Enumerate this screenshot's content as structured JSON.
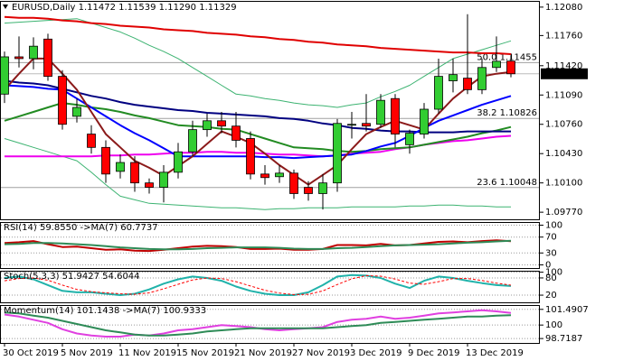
{
  "chart_data": [
    {
      "type": "candlestick",
      "title": "EURUSD,Daily  1.11472 1.11539 1.11290 1.11329",
      "categories": [
        "30 Oct 2019",
        null,
        null,
        null,
        "5 Nov 2019",
        null,
        null,
        null,
        "11 Nov 2019",
        null,
        null,
        null,
        "15 Nov 2019",
        null,
        null,
        null,
        "21 Nov 2019",
        null,
        null,
        null,
        "27 Nov 2019",
        null,
        null,
        null,
        "3 Dec 2019",
        null,
        null,
        null,
        "9 Dec 2019",
        null,
        null,
        null,
        "13 Dec 2019",
        null,
        null,
        null
      ],
      "open": [
        1.111,
        1.1152,
        1.115,
        1.1172,
        1.113,
        1.1085,
        1.1065,
        1.105,
        1.1023,
        1.1033,
        1.101,
        1.1005,
        1.1022,
        1.1045,
        1.107,
        1.108,
        1.1074,
        1.106,
        1.102,
        1.1017,
        1.1021,
        1.1005,
        1.0998,
        1.101,
        1.1075,
        1.1077,
        1.1076,
        1.1105,
        1.1053,
        1.1065,
        1.1093,
        1.1125,
        1.1128,
        1.1115,
        1.114,
        1.11472
      ],
      "high": [
        1.1158,
        1.1175,
        1.1174,
        1.1178,
        1.1137,
        1.1105,
        1.1075,
        1.1058,
        1.1042,
        1.104,
        1.1015,
        1.103,
        1.1055,
        1.108,
        1.1088,
        1.109,
        1.109,
        1.1068,
        1.103,
        1.103,
        1.1025,
        1.1012,
        1.102,
        1.1082,
        1.109,
        1.111,
        1.111,
        1.111,
        1.107,
        1.11,
        1.115,
        1.115,
        1.12,
        1.115,
        1.1175,
        1.11539
      ],
      "low": [
        1.11,
        1.114,
        1.1138,
        1.1125,
        1.107,
        1.1078,
        1.1043,
        1.101,
        1.1015,
        1.1,
        1.0998,
        1.0988,
        1.1015,
        1.104,
        1.1062,
        1.1066,
        1.105,
        1.1014,
        1.1008,
        1.101,
        1.0992,
        1.099,
        1.098,
        1.1,
        1.106,
        1.1068,
        1.1072,
        1.105,
        1.1043,
        1.106,
        1.1088,
        1.1112,
        1.111,
        1.111,
        1.1135,
        1.1129
      ],
      "close": [
        1.1152,
        1.115,
        1.1164,
        1.113,
        1.1076,
        1.1095,
        1.105,
        1.102,
        1.1033,
        1.101,
        1.1005,
        1.1022,
        1.1045,
        1.107,
        1.108,
        1.1074,
        1.1058,
        1.102,
        1.1016,
        1.1021,
        1.0998,
        1.0998,
        1.101,
        1.1077,
        1.1076,
        1.1074,
        1.1103,
        1.1065,
        1.1066,
        1.1093,
        1.113,
        1.1132,
        1.1115,
        1.114,
        1.1147,
        1.11329
      ],
      "up_color": "#32cd32",
      "down_color": "#ff0000",
      "lines": [
        {
          "color": "#3cb371",
          "values": [
            1.119,
            1.1191,
            1.1192,
            1.1193,
            1.1194,
            1.1195,
            1.119,
            1.1185,
            1.118,
            1.1173,
            1.1165,
            1.1158,
            1.115,
            1.114,
            1.113,
            1.112,
            1.111,
            1.1108,
            1.1105,
            1.1103,
            1.11,
            1.1098,
            1.1097,
            1.1095,
            1.1098,
            1.11,
            1.1107,
            1.1113,
            1.112,
            1.113,
            1.114,
            1.115,
            1.1155,
            1.116,
            1.1165,
            1.117
          ]
        },
        {
          "color": "#3cb371",
          "values": [
            1.106,
            1.1055,
            1.105,
            1.1045,
            1.104,
            1.1035,
            1.1022,
            1.1008,
            1.0995,
            1.0991,
            1.0987,
            1.0986,
            1.0985,
            1.0984,
            1.0983,
            1.0982,
            1.0982,
            1.0981,
            1.098,
            1.0981,
            1.0981,
            1.0982,
            1.0982,
            1.0982,
            1.0983,
            1.0983,
            1.0983,
            1.0983,
            1.0984,
            1.0984,
            1.0985,
            1.0985,
            1.0984,
            1.0984,
            1.0983,
            1.0983
          ]
        },
        {
          "color": "#ee00ee",
          "values": [
            1.104,
            1.104,
            1.104,
            1.104,
            1.104,
            1.104,
            1.104,
            1.1041,
            1.1041,
            1.1042,
            1.1042,
            1.1043,
            1.1044,
            1.1044,
            1.1045,
            1.1045,
            1.1044,
            1.1044,
            1.1043,
            1.1042,
            1.1042,
            1.1041,
            1.104,
            1.1041,
            1.1043,
            1.1044,
            1.1045,
            1.1048,
            1.105,
            1.1053,
            1.1055,
            1.1057,
            1.1058,
            1.106,
            1.1062,
            1.1063
          ]
        },
        {
          "color": "#228b22",
          "values": [
            1.108,
            1.1085,
            1.109,
            1.1095,
            1.11,
            1.1098,
            1.1095,
            1.1093,
            1.109,
            1.1086,
            1.1083,
            1.1079,
            1.1075,
            1.1074,
            1.1073,
            1.1071,
            1.107,
            1.1065,
            1.106,
            1.1055,
            1.105,
            1.1049,
            1.1048,
            1.1046,
            1.1045,
            1.1046,
            1.1048,
            1.1049,
            1.105,
            1.1053,
            1.1056,
            1.1059,
            1.1062,
            1.1066,
            1.1069,
            1.1073
          ]
        },
        {
          "color": "#000080",
          "values": [
            1.1125,
            1.1123,
            1.1122,
            1.112,
            1.1116,
            1.1112,
            1.1108,
            1.1105,
            1.1101,
            1.1098,
            1.1096,
            1.1094,
            1.1092,
            1.1091,
            1.1089,
            1.1088,
            1.1087,
            1.1086,
            1.1085,
            1.1083,
            1.1082,
            1.108,
            1.1077,
            1.1075,
            1.1072,
            1.1071,
            1.1069,
            1.1068,
            1.1068,
            1.1067,
            1.1067,
            1.1067,
            1.1068,
            1.1068,
            1.1068,
            1.1068
          ]
        },
        {
          "color": "#0000ff",
          "values": [
            1.112,
            1.1119,
            1.1118,
            1.1116,
            1.1115,
            1.1105,
            1.1095,
            1.1085,
            1.1075,
            1.1066,
            1.1058,
            1.1049,
            1.104,
            1.104,
            1.104,
            1.104,
            1.104,
            1.104,
            1.1039,
            1.1039,
            1.1038,
            1.1039,
            1.104,
            1.1041,
            1.1042,
            1.1046,
            1.1051,
            1.1055,
            1.1063,
            1.1072,
            1.108,
            1.1086,
            1.1092,
            1.1098,
            1.1103,
            1.1108
          ]
        },
        {
          "color": "#e00000",
          "values": [
            1.1197,
            1.1196,
            1.1196,
            1.1195,
            1.1193,
            1.1192,
            1.119,
            1.1189,
            1.1187,
            1.1186,
            1.1185,
            1.1183,
            1.1182,
            1.1181,
            1.1179,
            1.1178,
            1.1177,
            1.1175,
            1.1174,
            1.1172,
            1.1171,
            1.1169,
            1.1168,
            1.1166,
            1.1165,
            1.1164,
            1.1162,
            1.1161,
            1.116,
            1.1159,
            1.1158,
            1.1157,
            1.1157,
            1.1156,
            1.1156,
            1.1155
          ]
        },
        {
          "color": "#8b1a1a",
          "values": [
            1.1115,
            1.1133,
            1.115,
            1.115,
            1.1133,
            1.1115,
            1.109,
            1.1065,
            1.105,
            1.1035,
            1.1027,
            1.1018,
            1.1029,
            1.104,
            1.1054,
            1.1068,
            1.1062,
            1.1055,
            1.1043,
            1.103,
            1.1019,
            1.1008,
            1.1019,
            1.103,
            1.1048,
            1.1065,
            1.1073,
            1.108,
            1.1075,
            1.107,
            1.1088,
            1.1105,
            1.1118,
            1.113,
            1.1133,
            1.1135
          ]
        }
      ],
      "levels": [
        {
          "value": 1.11455,
          "label": "50.0 1.11455"
        },
        {
          "value": 1.10826,
          "label": "38.2 1.10826"
        },
        {
          "value": 1.10048,
          "label": "23.6 1.10048"
        }
      ],
      "last_price": {
        "value": 1.11329,
        "label": "1.11329"
      },
      "ylim": [
        1.0969,
        1.1215
      ],
      "yticks": [
        {
          "value": 1.1208,
          "label": "1.12080"
        },
        {
          "value": 1.1176,
          "label": "1.11760"
        },
        {
          "value": 1.1142,
          "label": "1.11420"
        },
        {
          "value": 1.1109,
          "label": "1.11090"
        },
        {
          "value": 1.1076,
          "label": "1.10760"
        },
        {
          "value": 1.1043,
          "label": "1.10430"
        },
        {
          "value": 1.101,
          "label": "1.10100"
        },
        {
          "value": 1.0977,
          "label": "1.09770"
        }
      ]
    },
    {
      "type": "line",
      "title": "RSI(14) 59.8550 ->MA(7) 60.7737",
      "series": [
        {
          "color": "#c00000",
          "values": [
            55,
            57,
            60,
            52,
            45,
            46,
            42,
            38,
            39,
            36,
            35,
            38,
            42,
            46,
            48,
            47,
            45,
            40,
            40,
            41,
            38,
            38,
            40,
            50,
            50,
            49,
            53,
            49,
            50,
            54,
            58,
            59,
            57,
            60,
            62,
            59.855
          ]
        },
        {
          "color": "#2e8b57",
          "values": [
            52,
            53,
            55,
            55,
            54,
            52,
            50,
            47,
            44,
            42,
            40,
            39,
            39,
            40,
            42,
            43,
            44,
            44,
            44,
            43,
            41,
            40,
            40,
            42,
            43,
            45,
            47,
            49,
            50,
            51,
            52,
            54,
            56,
            57,
            59,
            60.7737
          ]
        }
      ],
      "ylim": [
        -8,
        108
      ],
      "yticks": [
        100,
        70,
        30,
        0
      ],
      "grid": true
    },
    {
      "type": "line",
      "title": "Stoch(5,3,3) 51.9427 54.6044",
      "series": [
        {
          "color": "#20b2aa",
          "values": [
            80,
            85,
            75,
            55,
            35,
            30,
            30,
            25,
            20,
            25,
            40,
            60,
            75,
            85,
            80,
            70,
            50,
            35,
            25,
            20,
            20,
            30,
            55,
            85,
            90,
            88,
            80,
            60,
            45,
            70,
            85,
            80,
            70,
            62,
            55,
            51.9427
          ]
        },
        {
          "color": "#ff0000",
          "dash": true,
          "values": [
            70,
            78,
            80,
            72,
            55,
            40,
            32,
            28,
            25,
            23,
            28,
            42,
            58,
            73,
            80,
            78,
            67,
            52,
            37,
            27,
            22,
            23,
            35,
            57,
            77,
            88,
            86,
            76,
            62,
            58,
            67,
            78,
            78,
            71,
            62,
            54.6044
          ]
        }
      ],
      "ylim": [
        -5,
        105
      ],
      "yticks": [
        100,
        80,
        20
      ],
      "grid": true
    },
    {
      "type": "line",
      "title": "Momentum(14) 101.1438 ->MA(7) 100.9333",
      "series": [
        {
          "color": "#e040e0",
          "values": [
            101.0,
            100.8,
            100.5,
            100.2,
            99.6,
            99.2,
            99.0,
            98.9,
            98.9,
            99.1,
            99.0,
            99.2,
            99.5,
            99.6,
            99.8,
            100.0,
            99.9,
            99.8,
            99.6,
            99.5,
            99.6,
            99.7,
            99.8,
            100.3,
            100.5,
            100.6,
            100.8,
            100.6,
            100.7,
            100.9,
            101.1,
            101.2,
            101.3,
            101.4,
            101.3,
            101.1438
          ]
        },
        {
          "color": "#2e8b57",
          "values": [
            101.2,
            101.1,
            100.9,
            100.7,
            100.4,
            100.1,
            99.8,
            99.5,
            99.3,
            99.1,
            99.0,
            99.0,
            99.1,
            99.2,
            99.4,
            99.5,
            99.6,
            99.7,
            99.7,
            99.7,
            99.7,
            99.7,
            99.7,
            99.8,
            99.9,
            100.0,
            100.2,
            100.3,
            100.4,
            100.5,
            100.6,
            100.7,
            100.8,
            100.8,
            100.9,
            100.9333
          ]
        }
      ],
      "ylim": [
        98.3,
        101.9
      ],
      "yticks": [
        101.4907,
        100,
        98.7187
      ],
      "grid": true
    }
  ]
}
